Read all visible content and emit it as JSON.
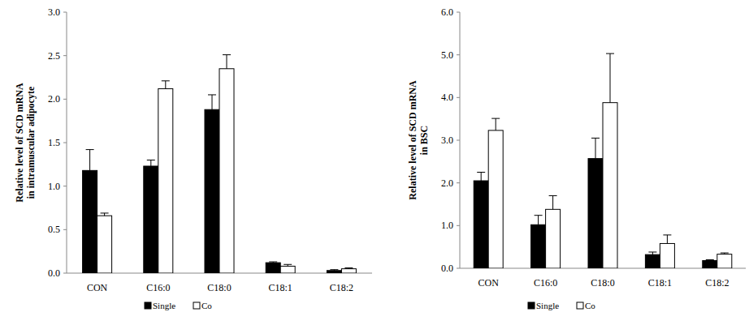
{
  "chart_data": [
    {
      "type": "bar",
      "ylabel": [
        "Relative level of SCD  mRNA",
        "in intramuscular adipocyte"
      ],
      "categories": [
        "CON",
        "C16:0",
        "C18:0",
        "C18:1",
        "C18:2"
      ],
      "series": [
        {
          "name": "Single",
          "color": "#000000",
          "values": [
            1.18,
            1.23,
            1.88,
            0.12,
            0.03
          ],
          "errors": [
            0.24,
            0.07,
            0.17,
            0.01,
            0.01
          ]
        },
        {
          "name": "Co",
          "color": "#ffffff",
          "values": [
            0.66,
            2.12,
            2.35,
            0.08,
            0.05
          ],
          "errors": [
            0.03,
            0.09,
            0.16,
            0.02,
            0.01
          ]
        }
      ],
      "ylim": [
        0,
        3
      ],
      "yticks": [
        {
          "value": 0,
          "label": "0.0"
        },
        {
          "value": 0.5,
          "label": "0.5"
        },
        {
          "value": 1,
          "label": "1.0"
        },
        {
          "value": 1.5,
          "label": "1.5"
        },
        {
          "value": 2,
          "label": "2.0"
        },
        {
          "value": 2.5,
          "label": "2.5"
        },
        {
          "value": 3,
          "label": "3.0"
        }
      ],
      "grid": false,
      "legend": "bottom"
    },
    {
      "type": "bar",
      "ylabel": [
        "Relative level of SCD  mRNA",
        "in BSC"
      ],
      "categories": [
        "CON",
        "C16:0",
        "C18:0",
        "C18:1",
        "C18:2"
      ],
      "series": [
        {
          "name": "Single",
          "color": "#000000",
          "values": [
            2.05,
            1.02,
            2.57,
            0.32,
            0.18
          ],
          "errors": [
            0.2,
            0.22,
            0.48,
            0.06,
            0.02
          ]
        },
        {
          "name": "Co",
          "color": "#ffffff",
          "values": [
            3.23,
            1.38,
            3.88,
            0.58,
            0.33
          ],
          "errors": [
            0.28,
            0.32,
            1.15,
            0.2,
            0.03
          ]
        }
      ],
      "ylim": [
        0,
        6
      ],
      "yticks": [
        {
          "value": 0,
          "label": "0.0"
        },
        {
          "value": 1,
          "label": "1.0"
        },
        {
          "value": 2,
          "label": "2.0"
        },
        {
          "value": 3,
          "label": "3.0"
        },
        {
          "value": 4,
          "label": "4.0"
        },
        {
          "value": 5,
          "label": "5.0"
        },
        {
          "value": 6,
          "label": "6.0"
        }
      ],
      "grid": false,
      "legend": "bottom"
    }
  ]
}
